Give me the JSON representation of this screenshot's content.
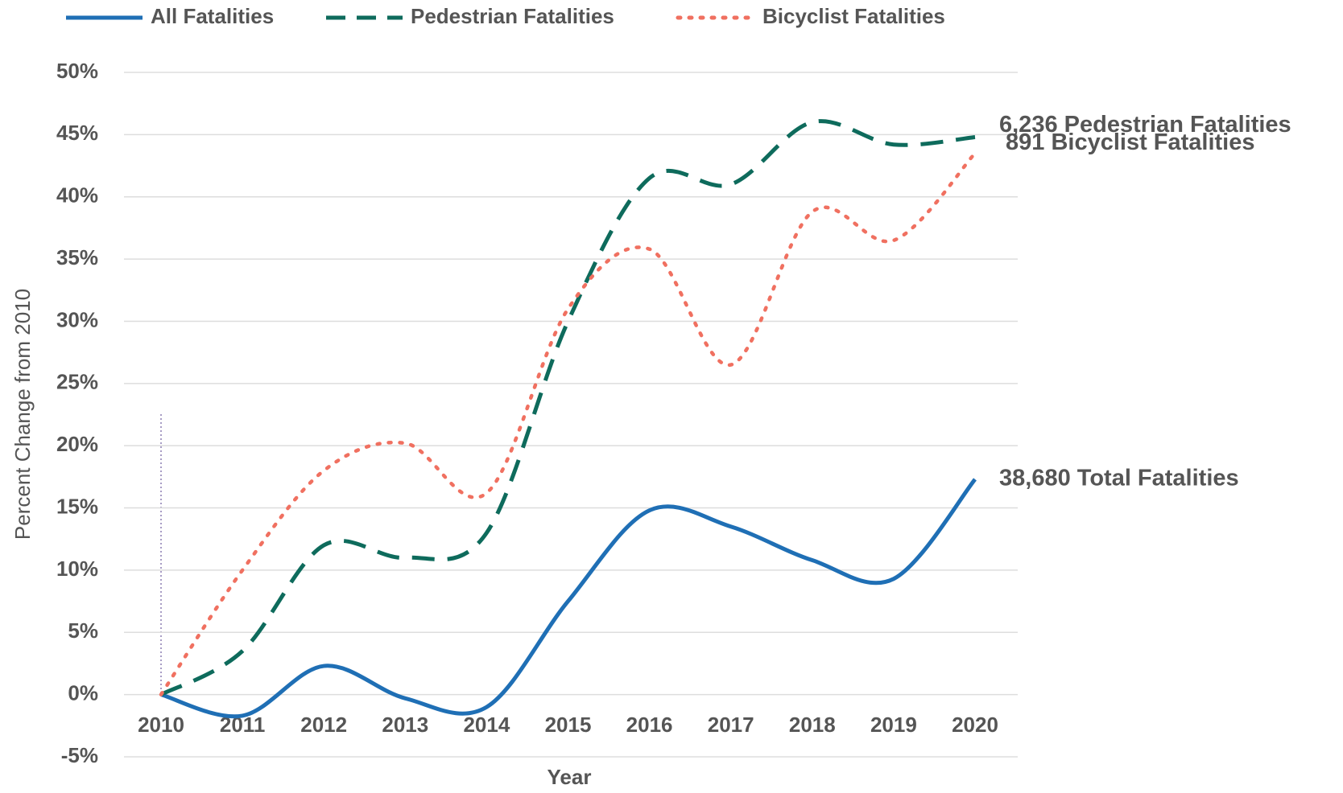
{
  "chart_data": {
    "type": "line",
    "x_label": "Year",
    "y_label": "Percent Change from 2010",
    "categories": [
      "2010",
      "2011",
      "2012",
      "2013",
      "2014",
      "2015",
      "2016",
      "2017",
      "2018",
      "2019",
      "2020"
    ],
    "series": [
      {
        "name": "All Fatalities",
        "color": "#1f6fb5",
        "dash": "solid",
        "label": "38,680 Total Fatalities",
        "label_color": "#2e7cc0",
        "values": [
          0,
          -1.7,
          2.3,
          -0.3,
          -1.0,
          7.5,
          14.8,
          13.5,
          10.8,
          9.3,
          17.3
        ]
      },
      {
        "name": "Pedestrian Fatalities",
        "color": "#0e6b5c",
        "dash": "dashed",
        "label": "6,236 Pedestrian Fatalities",
        "label_color": "#2a8a85",
        "values": [
          0,
          3.5,
          12.0,
          11.0,
          13.0,
          30.0,
          41.5,
          41.0,
          46.0,
          44.2,
          44.8
        ]
      },
      {
        "name": "Bicyclist Fatalities",
        "color": "#f07060",
        "dash": "dotted",
        "label": "891 Bicyclist Fatalities",
        "label_color": "#a33a2a",
        "values": [
          0,
          10.0,
          18.0,
          20.2,
          16.2,
          31.0,
          35.8,
          26.5,
          38.8,
          36.5,
          43.5
        ]
      }
    ],
    "ylim": [
      -5,
      50
    ],
    "yticks": [
      {
        "value": -5,
        "label": "-5%"
      },
      {
        "value": 0,
        "label": "0%"
      },
      {
        "value": 5,
        "label": "5%"
      },
      {
        "value": 10,
        "label": "10%"
      },
      {
        "value": 15,
        "label": "15%"
      },
      {
        "value": 20,
        "label": "20%"
      },
      {
        "value": 25,
        "label": "25%"
      },
      {
        "value": 30,
        "label": "30%"
      },
      {
        "value": 35,
        "label": "35%"
      },
      {
        "value": 40,
        "label": "40%"
      },
      {
        "value": 45,
        "label": "45%"
      },
      {
        "value": 50,
        "label": "50%"
      }
    ],
    "grid": true,
    "legend": "top"
  }
}
